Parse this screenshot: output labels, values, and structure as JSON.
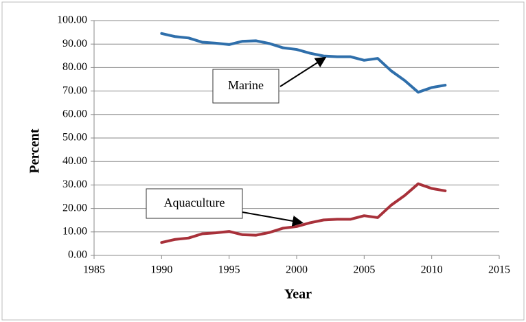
{
  "chart_data": {
    "type": "line",
    "x_label": "Year",
    "y_label": "Percent",
    "x": [
      1990,
      1991,
      1992,
      1993,
      1994,
      1995,
      1996,
      1997,
      1998,
      1999,
      2000,
      2001,
      2002,
      2003,
      2004,
      2005,
      2006,
      2007,
      2008,
      2009,
      2010,
      2011
    ],
    "series": [
      {
        "name": "Marine",
        "color": "#2f6fab",
        "values": [
          94.5,
          93.2,
          92.6,
          90.8,
          90.4,
          89.8,
          91.2,
          91.4,
          90.2,
          88.4,
          87.7,
          86.1,
          84.9,
          84.6,
          84.6,
          83.1,
          83.9,
          78.6,
          74.5,
          69.5,
          71.5,
          72.5
        ]
      },
      {
        "name": "Aquaculture",
        "color": "#a8313a",
        "values": [
          5.5,
          6.8,
          7.4,
          9.2,
          9.6,
          10.2,
          8.8,
          8.6,
          9.8,
          11.6,
          12.3,
          13.9,
          15.1,
          15.4,
          15.4,
          16.9,
          16.1,
          21.4,
          25.5,
          30.5,
          28.5,
          27.5
        ]
      }
    ],
    "xlim": [
      1985,
      2015
    ],
    "xticks": [
      1985,
      1990,
      1995,
      2000,
      2005,
      2010,
      2015
    ],
    "ylim": [
      0,
      100
    ],
    "yticks": [
      {
        "value": 0,
        "label": "0.00"
      },
      {
        "value": 10,
        "label": "10.00"
      },
      {
        "value": 20,
        "label": "20.00"
      },
      {
        "value": 30,
        "label": "30.00"
      },
      {
        "value": 40,
        "label": "40.00"
      },
      {
        "value": 50,
        "label": "50.00"
      },
      {
        "value": 60,
        "label": "60.00"
      },
      {
        "value": 70,
        "label": "70.00"
      },
      {
        "value": 80,
        "label": "80.00"
      },
      {
        "value": 90,
        "label": "90.00"
      },
      {
        "value": 100,
        "label": "100.00"
      }
    ],
    "grid": true
  }
}
